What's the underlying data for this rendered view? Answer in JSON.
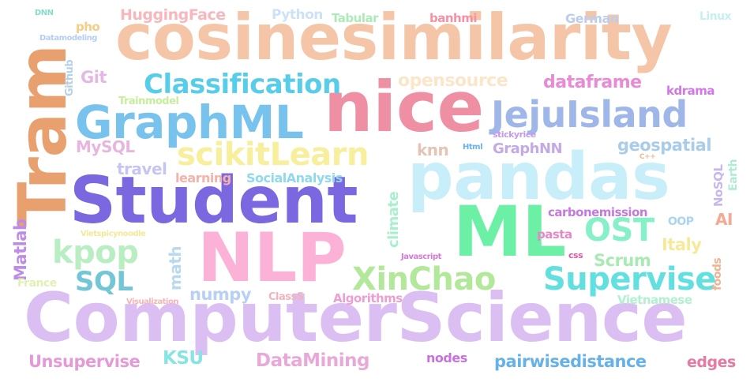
{
  "words": [
    {
      "id": "w-cosinesimilarity",
      "text": "cosinesimilarity",
      "color": "#f4c6a7"
    },
    {
      "id": "w-tram",
      "text": "Tram",
      "color": "#e8a06e"
    },
    {
      "id": "w-nice",
      "text": "nice",
      "color": "#ef8fa3"
    },
    {
      "id": "w-graphml",
      "text": "GraphML",
      "color": "#78c3ee"
    },
    {
      "id": "w-jejuisland",
      "text": "JejuIsland",
      "color": "#9fb7e8"
    },
    {
      "id": "w-classification",
      "text": "Classification",
      "color": "#58cde9"
    },
    {
      "id": "w-pandas",
      "text": "pandas",
      "color": "#c8eff9"
    },
    {
      "id": "w-student",
      "text": "Student",
      "color": "#7b68e0"
    },
    {
      "id": "w-ml",
      "text": "ML",
      "color": "#6cf0a6"
    },
    {
      "id": "w-nlp",
      "text": "NLP",
      "color": "#fbb2d6"
    },
    {
      "id": "w-computerscience",
      "text": "ComputerScience",
      "color": "#dcbff2"
    },
    {
      "id": "w-xinchao",
      "text": "XinChao",
      "color": "#b2e89a"
    },
    {
      "id": "w-supervise",
      "text": "Supervise",
      "color": "#62e0e0"
    },
    {
      "id": "w-ost",
      "text": "OST",
      "color": "#86f0c8"
    },
    {
      "id": "w-kpop",
      "text": "kpop",
      "color": "#b8eec2"
    },
    {
      "id": "w-sql",
      "text": "SQL",
      "color": "#73c6d6"
    },
    {
      "id": "w-scikitlearn",
      "text": "scikitLearn",
      "color": "#f8ef9c"
    },
    {
      "id": "w-opensource",
      "text": "opensource",
      "color": "#fae6c8"
    },
    {
      "id": "w-dataframe",
      "text": "dataframe",
      "color": "#e88ad6"
    },
    {
      "id": "w-huggingface",
      "text": "HuggingFace",
      "color": "#f6b7bd"
    },
    {
      "id": "w-python",
      "text": "Python",
      "color": "#cde2f7"
    },
    {
      "id": "w-tabular",
      "text": "Tabular",
      "color": "#aeeab8"
    },
    {
      "id": "w-banhmi",
      "text": "banhmi",
      "color": "#f591a4"
    },
    {
      "id": "w-german",
      "text": "German",
      "color": "#bccdee"
    },
    {
      "id": "w-linux",
      "text": "Linux",
      "color": "#c6f0f0"
    },
    {
      "id": "w-dnn",
      "text": "DNN",
      "color": "#86dccc"
    },
    {
      "id": "w-pho",
      "text": "pho",
      "color": "#f6cd82"
    },
    {
      "id": "w-datamodeling",
      "text": "Datamodeling",
      "color": "#b6cef4"
    },
    {
      "id": "w-github",
      "text": "Github",
      "color": "#b6d1e6"
    },
    {
      "id": "w-git",
      "text": "Git",
      "color": "#e4b8e2"
    },
    {
      "id": "w-trainmodel",
      "text": "Trainmodel",
      "color": "#c6ee9c"
    },
    {
      "id": "w-kdrama",
      "text": "kdrama",
      "color": "#d277e6"
    },
    {
      "id": "w-mysql",
      "text": "MySQL",
      "color": "#e8b5df"
    },
    {
      "id": "w-knn",
      "text": "knn",
      "color": "#e4c4b4"
    },
    {
      "id": "w-html",
      "text": "Html",
      "color": "#6ab2ee"
    },
    {
      "id": "w-stickyrice",
      "text": "stickyrice",
      "color": "#c49aea"
    },
    {
      "id": "w-graphnn",
      "text": "GraphNN",
      "color": "#c3a9e6"
    },
    {
      "id": "w-geospatial",
      "text": "geospatial",
      "color": "#a8ccea"
    },
    {
      "id": "w-cpp",
      "text": "C++",
      "color": "#f6b694"
    },
    {
      "id": "w-travel",
      "text": "travel",
      "color": "#c6c4f4"
    },
    {
      "id": "w-learning",
      "text": "learning",
      "color": "#f5b2a9"
    },
    {
      "id": "w-socialanalysis",
      "text": "SocialAnalysis",
      "color": "#8edaec"
    },
    {
      "id": "w-climate",
      "text": "climate",
      "color": "#a8f0cc"
    },
    {
      "id": "w-nosql",
      "text": "NoSQL",
      "color": "#c7b7ef"
    },
    {
      "id": "w-earth",
      "text": "Earth",
      "color": "#b0ecd4"
    },
    {
      "id": "w-carbonemission",
      "text": "carbonemission",
      "color": "#c47adc"
    },
    {
      "id": "w-ai",
      "text": "AI",
      "color": "#f5a992"
    },
    {
      "id": "w-oop",
      "text": "OOP",
      "color": "#a9d5f2"
    },
    {
      "id": "w-matlab",
      "text": "Matlab",
      "color": "#bd8ce6"
    },
    {
      "id": "w-vietspicynoodle",
      "text": "Vietspicynoodle",
      "color": "#f1ea9a"
    },
    {
      "id": "w-pasta",
      "text": "pasta",
      "color": "#e588c8"
    },
    {
      "id": "w-italy",
      "text": "Italy",
      "color": "#f6ea98"
    },
    {
      "id": "w-math",
      "text": "math",
      "color": "#b9d9ee"
    },
    {
      "id": "w-javascript",
      "text": "Javascript",
      "color": "#d47ad6"
    },
    {
      "id": "w-css",
      "text": "css",
      "color": "#e056a8"
    },
    {
      "id": "w-scrum",
      "text": "Scrum",
      "color": "#a8eab2"
    },
    {
      "id": "w-foods",
      "text": "foods",
      "color": "#f2b294"
    },
    {
      "id": "w-france",
      "text": "France",
      "color": "#e0f2b2"
    },
    {
      "id": "w-numpy",
      "text": "numpy",
      "color": "#b8d0f2"
    },
    {
      "id": "w-visualization",
      "text": "Visualization",
      "color": "#f6b4b4"
    },
    {
      "id": "w-classs",
      "text": "ClassS",
      "color": "#f1b4bf"
    },
    {
      "id": "w-algorithms",
      "text": "Algorithms",
      "color": "#ef9ed2"
    },
    {
      "id": "w-vietnamese",
      "text": "Vietnamese",
      "color": "#b2f0d0"
    },
    {
      "id": "w-unsupervise",
      "text": "Unsupervise",
      "color": "#e39ad6"
    },
    {
      "id": "w-ksu",
      "text": "KSU",
      "color": "#86e4e4"
    },
    {
      "id": "w-datamining",
      "text": "DataMining",
      "color": "#e8a8d8"
    },
    {
      "id": "w-nodes",
      "text": "nodes",
      "color": "#c772e0"
    },
    {
      "id": "w-pairwisedistance",
      "text": "pairwisedistance",
      "color": "#66b2e6"
    },
    {
      "id": "w-edges",
      "text": "edges",
      "color": "#e77aa2"
    }
  ]
}
